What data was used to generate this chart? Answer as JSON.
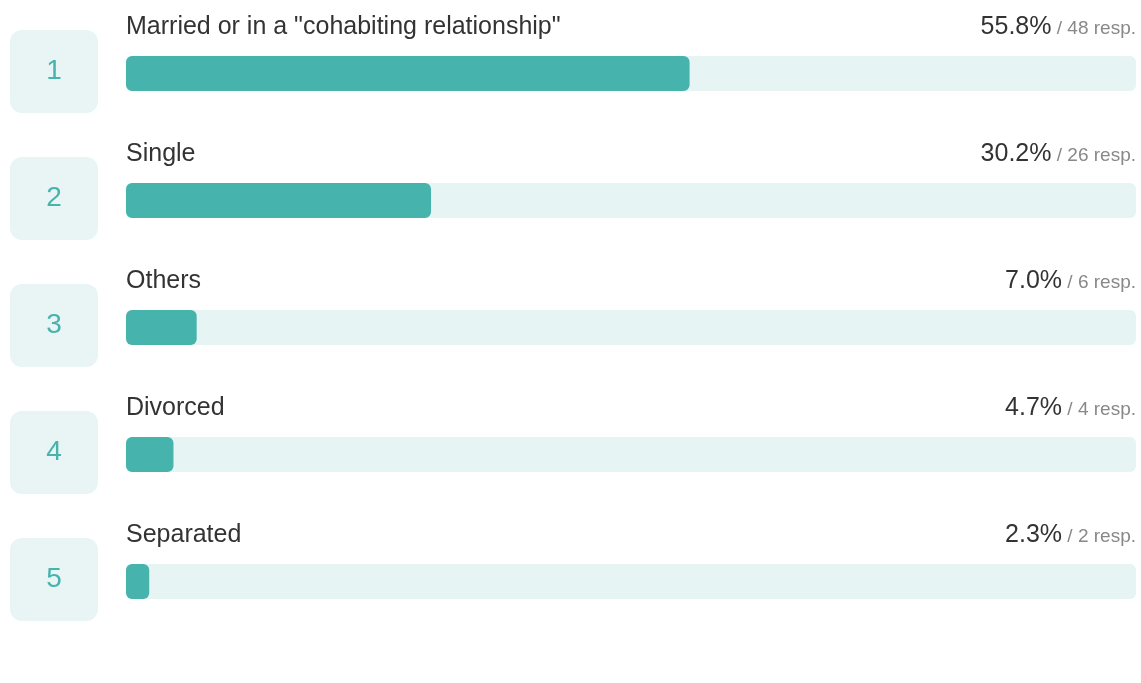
{
  "chart_data": {
    "type": "bar",
    "orientation": "horizontal",
    "categories": [
      "Married or in a \"cohabiting relationship\"",
      "Single",
      "Others",
      "Divorced",
      "Separated"
    ],
    "values": [
      55.8,
      30.2,
      7.0,
      4.7,
      2.3
    ],
    "value_labels": [
      "55.8% / 48 resp.",
      "30.2% / 26 resp.",
      "7.0% / 6 resp.",
      "4.7% / 4 resp.",
      "2.3% / 2 resp."
    ],
    "annotations": [
      "1",
      "2",
      "3",
      "4",
      "5"
    ],
    "color": "#47b3ad",
    "xlim": [
      0,
      100
    ]
  }
}
